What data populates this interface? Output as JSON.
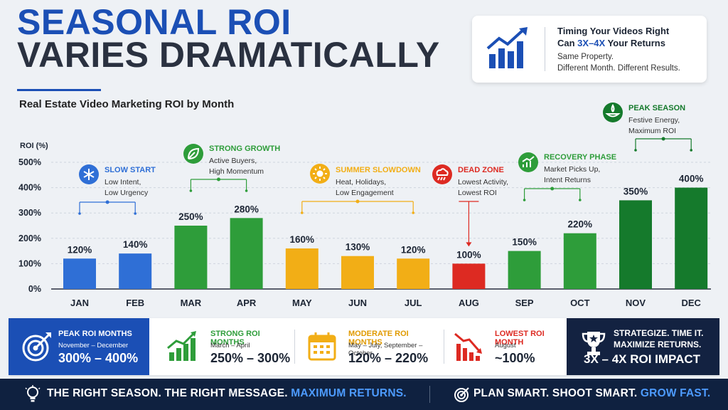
{
  "title": {
    "line1": "SEASONAL ROI",
    "line2": "VARIES DRAMATICALLY"
  },
  "info_card": {
    "line1": "Timing Your Videos Right",
    "line2_prefix": "Can ",
    "line2_highlight": "3X–4X",
    "line2_suffix": " Your Returns",
    "line3": "Same Property.",
    "line4": "Different Month. Different Results.",
    "icon": "growth-chart-icon"
  },
  "chart_data": {
    "type": "bar",
    "title": "Real Estate Video Marketing ROI by Month",
    "ylabel": "ROI (%)",
    "xlabel": "",
    "ylim": [
      0,
      500
    ],
    "yticks": [
      "0%",
      "100%",
      "200%",
      "300%",
      "400%",
      "500%"
    ],
    "categories": [
      "JAN",
      "FEB",
      "MAR",
      "APR",
      "MAY",
      "JUN",
      "JUL",
      "AUG",
      "SEP",
      "OCT",
      "NOV",
      "DEC"
    ],
    "values": [
      120,
      140,
      250,
      280,
      160,
      130,
      120,
      100,
      150,
      220,
      350,
      400
    ],
    "value_labels": [
      "120%",
      "140%",
      "250%",
      "280%",
      "160%",
      "130%",
      "120%",
      "100%",
      "150%",
      "220%",
      "350%",
      "400%"
    ],
    "bar_colors": [
      "#2f6fd6",
      "#2f6fd6",
      "#2e9d3a",
      "#2e9d3a",
      "#f2ae16",
      "#f2ae16",
      "#f2ae16",
      "#dd2a22",
      "#2e9d3a",
      "#2e9d3a",
      "#157a2c",
      "#157a2c"
    ],
    "annotations": [
      {
        "title": "SLOW START",
        "lines": [
          "Low Intent,",
          "Low Urgency"
        ],
        "color": "#2f6fd6",
        "icon": "snowflake-icon",
        "months": [
          0,
          1
        ]
      },
      {
        "title": "STRONG GROWTH",
        "lines": [
          "Active Buyers,",
          "High Momentum"
        ],
        "color": "#2e9d3a",
        "icon": "leaf-icon",
        "months": [
          2,
          3
        ]
      },
      {
        "title": "SUMMER SLOWDOWN",
        "lines": [
          "Heat, Holidays,",
          "Low Engagement"
        ],
        "color": "#f2ae16",
        "icon": "sun-icon",
        "months": [
          4,
          6
        ]
      },
      {
        "title": "DEAD ZONE",
        "lines": [
          "Lowest Activity,",
          "Lowest ROI"
        ],
        "color": "#dd2a22",
        "icon": "rain-cloud-icon",
        "months": [
          7,
          7
        ]
      },
      {
        "title": "RECOVERY PHASE",
        "lines": [
          "Market Picks Up,",
          "Intent Returns"
        ],
        "color": "#2e9d3a",
        "icon": "rising-chart-icon",
        "months": [
          8,
          9
        ]
      },
      {
        "title": "PEAK SEASON",
        "lines": [
          "Festive Energy,",
          "Maximum ROI"
        ],
        "color": "#157a2c",
        "icon": "lamp-icon",
        "months": [
          10,
          11
        ]
      }
    ]
  },
  "legend": {
    "peak": {
      "label": "PEAK ROI MONTHS",
      "range": "November – December",
      "value": "300% – 400%",
      "icon": "target-icon"
    },
    "strong": {
      "label": "STRONG ROI MONTHS",
      "range": "March – April",
      "value": "250% – 300%",
      "color": "#2e9d3a",
      "icon": "bar-growth-icon"
    },
    "moderate": {
      "label": "MODERATE ROI MONTHS",
      "range": "May – July, September – October",
      "value": "120% – 220%",
      "color": "#f2ae16",
      "icon": "calendar-icon"
    },
    "lowest": {
      "label": "LOWEST ROI MONTH",
      "range": "August",
      "value": "~100%",
      "color": "#dd2a22",
      "icon": "bar-decline-icon"
    },
    "final": {
      "line1": "STRATEGIZE. TIME IT.",
      "line2": "MAXIMIZE RETURNS.",
      "value": "3X – 4X ROI IMPACT",
      "icon": "trophy-icon"
    }
  },
  "footer": {
    "left_prefix": "THE RIGHT SEASON. THE RIGHT MESSAGE. ",
    "left_highlight": "MAXIMUM RETURNS.",
    "right_prefix": "PLAN SMART. SHOOT SMART. ",
    "right_highlight": "GROW FAST.",
    "left_icon": "lightbulb-icon",
    "right_icon": "target-icon"
  }
}
